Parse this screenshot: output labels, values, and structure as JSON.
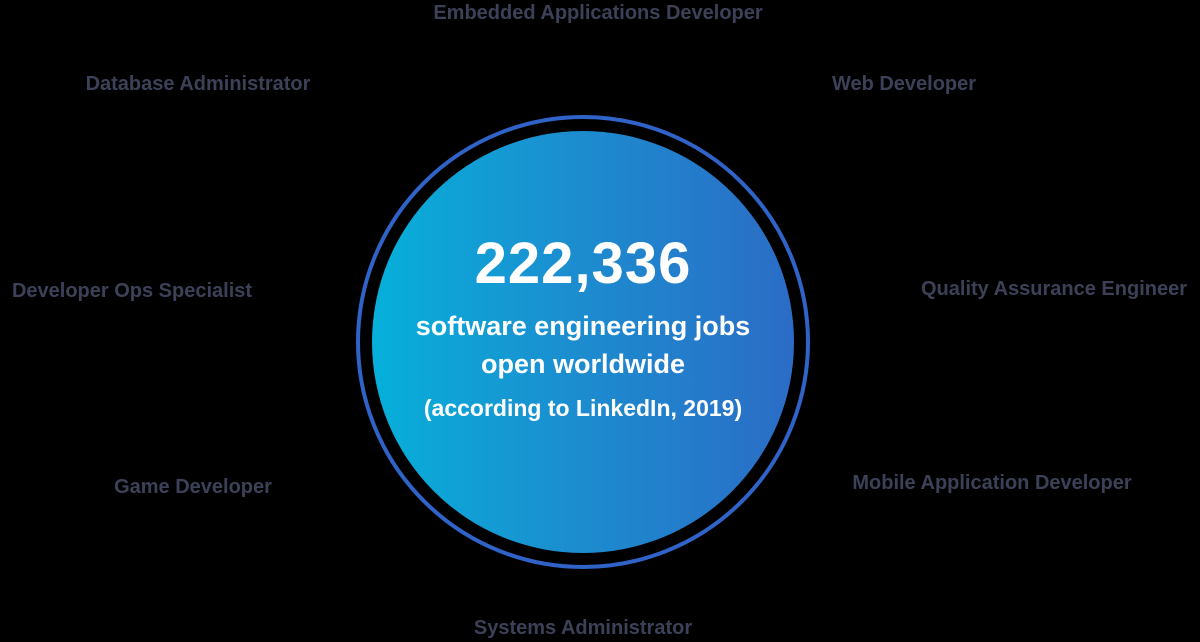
{
  "center": {
    "count": "222,336",
    "line1": "software engineering jobs",
    "line2": "open worldwide",
    "source": "(according to LinkedIn, 2019)"
  },
  "roles": {
    "embedded": "Embedded Applications Developer",
    "web": "Web Developer",
    "qa": "Quality Assurance Engineer",
    "mobile": "Mobile Application Developer",
    "sysadmin": "Systems Administrator",
    "game": "Game Developer",
    "devops": "Developer Ops Specialist",
    "dba": "Database Administrator"
  },
  "colors": {
    "background": "#000000",
    "role_text": "#3d4157",
    "ring": "#2f63c8",
    "gradient_start": "#06b0da",
    "gradient_end": "#2b6cc6",
    "center_text": "#ffffff"
  }
}
